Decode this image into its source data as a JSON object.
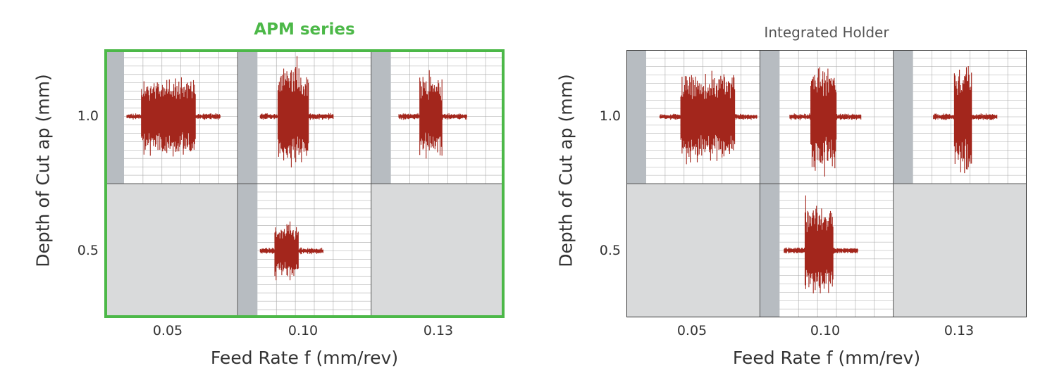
{
  "chart_data": [
    {
      "type": "grid-of-waveforms",
      "title": "APM series",
      "xlabel": "Feed Rate f (mm/rev)",
      "ylabel": "Depth of Cut ap (mm)",
      "x_ticks": [
        "0.05",
        "0.10",
        "0.13"
      ],
      "y_ticks": [
        "1.0",
        "0.5"
      ],
      "highlighted": true,
      "cells": [
        {
          "feed": "0.05",
          "depth": "1.0",
          "has_data": true,
          "amplitude": 0.62,
          "burst_start": 0.15,
          "burst_end": 0.63
        },
        {
          "feed": "0.10",
          "depth": "1.0",
          "has_data": true,
          "amplitude": 0.8,
          "burst_start": 0.18,
          "burst_end": 0.45
        },
        {
          "feed": "0.13",
          "depth": "1.0",
          "has_data": true,
          "amplitude": 0.65,
          "burst_start": 0.25,
          "burst_end": 0.45
        },
        {
          "feed": "0.05",
          "depth": "0.5",
          "has_data": false
        },
        {
          "feed": "0.10",
          "depth": "0.5",
          "has_data": true,
          "amplitude": 0.42,
          "burst_start": 0.15,
          "burst_end": 0.36
        },
        {
          "feed": "0.13",
          "depth": "0.5",
          "has_data": false
        }
      ]
    },
    {
      "type": "grid-of-waveforms",
      "title": "Integrated Holder",
      "xlabel": "Feed Rate f (mm/rev)",
      "ylabel": "Depth of Cut ap (mm)",
      "x_ticks": [
        "0.05",
        "0.10",
        "0.13"
      ],
      "y_ticks": [
        "1.0",
        "0.5"
      ],
      "highlighted": false,
      "cells": [
        {
          "feed": "0.05",
          "depth": "1.0",
          "has_data": true,
          "amplitude": 0.7,
          "burst_start": 0.3,
          "burst_end": 0.78
        },
        {
          "feed": "0.10",
          "depth": "1.0",
          "has_data": true,
          "amplitude": 0.82,
          "burst_start": 0.27,
          "burst_end": 0.5
        },
        {
          "feed": "0.13",
          "depth": "1.0",
          "has_data": true,
          "amplitude": 0.9,
          "burst_start": 0.36,
          "burst_end": 0.52
        },
        {
          "feed": "0.05",
          "depth": "0.5",
          "has_data": false
        },
        {
          "feed": "0.10",
          "depth": "0.5",
          "has_data": true,
          "amplitude": 0.7,
          "burst_start": 0.22,
          "burst_end": 0.47
        },
        {
          "feed": "0.13",
          "depth": "0.5",
          "has_data": false
        }
      ]
    }
  ],
  "colors": {
    "waveform": "#a3261c",
    "highlight_border": "#4cb848",
    "empty_cell": "#d9dadb",
    "axis_strip": "#b7bcc1",
    "grid": "#aaaaaa"
  }
}
